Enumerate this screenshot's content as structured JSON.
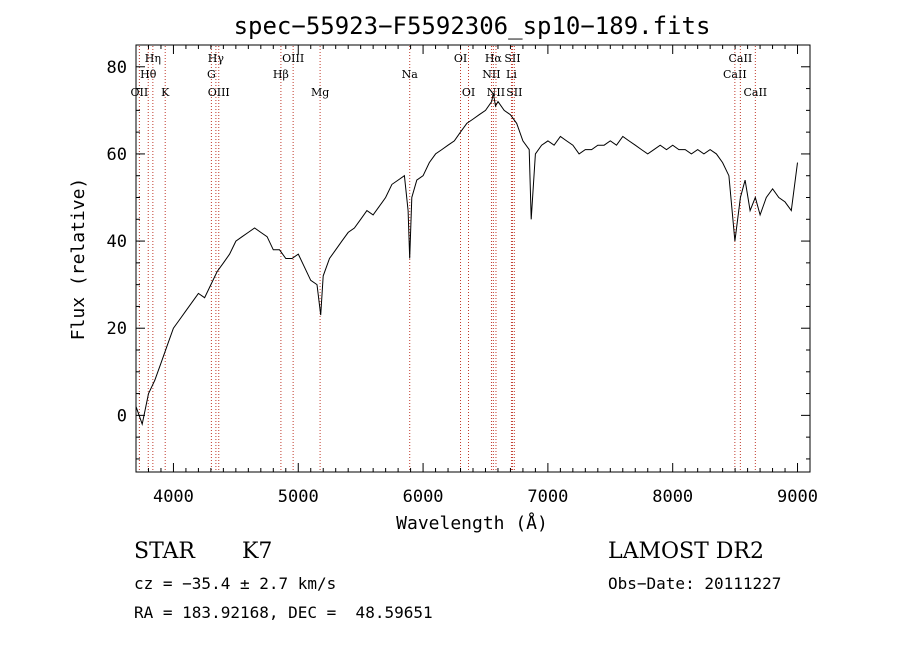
{
  "chart_data": {
    "type": "line",
    "title": "spec−55923−F5592306_sp10−189.fits",
    "xlabel": "Wavelength (Å)",
    "ylabel": "Flux (relative)",
    "xlim": [
      3700,
      9100
    ],
    "ylim": [
      -13,
      85
    ],
    "xticks": [
      4000,
      5000,
      6000,
      7000,
      8000,
      9000
    ],
    "yticks": [
      0,
      20,
      40,
      60,
      80
    ],
    "grid": false,
    "series": [
      {
        "color": "#000000",
        "x": [
          3700,
          3750,
          3800,
          3850,
          3900,
          3950,
          4000,
          4050,
          4100,
          4150,
          4200,
          4250,
          4300,
          4350,
          4400,
          4450,
          4500,
          4550,
          4600,
          4650,
          4700,
          4750,
          4800,
          4850,
          4900,
          4950,
          5000,
          5050,
          5100,
          5150,
          5180,
          5200,
          5250,
          5300,
          5350,
          5400,
          5450,
          5500,
          5550,
          5600,
          5650,
          5700,
          5750,
          5800,
          5850,
          5880,
          5893,
          5910,
          5950,
          6000,
          6050,
          6100,
          6150,
          6200,
          6250,
          6300,
          6350,
          6400,
          6450,
          6500,
          6550,
          6563,
          6580,
          6600,
          6650,
          6700,
          6750,
          6800,
          6850,
          6866,
          6900,
          6950,
          7000,
          7050,
          7100,
          7150,
          7200,
          7250,
          7300,
          7350,
          7400,
          7450,
          7500,
          7550,
          7600,
          7650,
          7700,
          7750,
          7800,
          7850,
          7900,
          7950,
          8000,
          8050,
          8100,
          8150,
          8200,
          8250,
          8300,
          8350,
          8400,
          8450,
          8498,
          8542,
          8580,
          8620,
          8662,
          8700,
          8750,
          8800,
          8850,
          8900,
          8950,
          9000
        ],
        "y": [
          2,
          -2,
          5,
          8,
          12,
          16,
          20,
          22,
          24,
          26,
          28,
          27,
          30,
          33,
          35,
          37,
          40,
          41,
          42,
          43,
          42,
          41,
          38,
          38,
          36,
          36,
          37,
          34,
          31,
          30,
          23,
          32,
          36,
          38,
          40,
          42,
          43,
          45,
          47,
          46,
          48,
          50,
          53,
          54,
          55,
          47,
          36,
          50,
          54,
          55,
          58,
          60,
          61,
          62,
          63,
          65,
          67,
          68,
          69,
          70,
          72,
          74,
          71,
          72,
          70,
          69,
          67,
          63,
          61,
          45,
          60,
          62,
          63,
          62,
          64,
          63,
          62,
          60,
          61,
          61,
          62,
          62,
          63,
          62,
          64,
          63,
          62,
          61,
          60,
          61,
          62,
          61,
          62,
          61,
          61,
          60,
          61,
          60,
          61,
          60,
          58,
          55,
          40,
          50,
          54,
          47,
          50,
          46,
          50,
          52,
          50,
          49,
          47,
          58
        ]
      }
    ],
    "line_labels": [
      {
        "label": "Hη",
        "wavelength": 3835,
        "row": 1
      },
      {
        "label": "Hθ",
        "wavelength": 3798,
        "row": 2
      },
      {
        "label": "OII",
        "wavelength": 3727,
        "row": 3
      },
      {
        "label": "K",
        "wavelength": 3934,
        "row": 3
      },
      {
        "label": "Hγ",
        "wavelength": 4340,
        "row": 1
      },
      {
        "label": "G",
        "wavelength": 4304,
        "row": 2
      },
      {
        "label": "OIII",
        "wavelength": 4363,
        "row": 3
      },
      {
        "label": "OIII",
        "wavelength": 4959,
        "row": 1
      },
      {
        "label": "Hβ",
        "wavelength": 4861,
        "row": 2
      },
      {
        "label": "Mg",
        "wavelength": 5175,
        "row": 3
      },
      {
        "label": "Na",
        "wavelength": 5893,
        "row": 2
      },
      {
        "label": "OI",
        "wavelength": 6300,
        "row": 1
      },
      {
        "label": "OI",
        "wavelength": 6364,
        "row": 3
      },
      {
        "label": "Hα",
        "wavelength": 6563,
        "row": 1
      },
      {
        "label": "SII",
        "wavelength": 6716,
        "row": 1
      },
      {
        "label": "NII",
        "wavelength": 6548,
        "row": 2
      },
      {
        "label": "Li",
        "wavelength": 6708,
        "row": 2
      },
      {
        "label": "NII",
        "wavelength": 6584,
        "row": 3
      },
      {
        "label": "SII",
        "wavelength": 6731,
        "row": 3
      },
      {
        "label": "CaII",
        "wavelength": 8542,
        "row": 1
      },
      {
        "label": "CaII",
        "wavelength": 8498,
        "row": 2
      },
      {
        "label": "CaII",
        "wavelength": 8662,
        "row": 3
      }
    ]
  },
  "info": {
    "object_class": "STAR",
    "subclass": "K7",
    "survey": "LAMOST DR2",
    "redshift": "cz = −35.4 ± 2.7 km/s",
    "obs_date": "Obs−Date: 20111227",
    "coords": "RA = 183.92168, DEC =  48.59651"
  }
}
